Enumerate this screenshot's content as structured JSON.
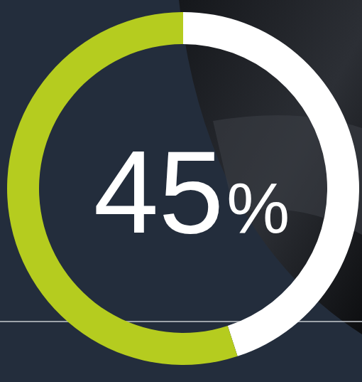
{
  "chart_data": {
    "type": "donut",
    "values": [
      45,
      55
    ],
    "value_labels": [
      "45%",
      null
    ],
    "colors": [
      "#ffffff",
      "#b5cc1f"
    ]
  }
}
